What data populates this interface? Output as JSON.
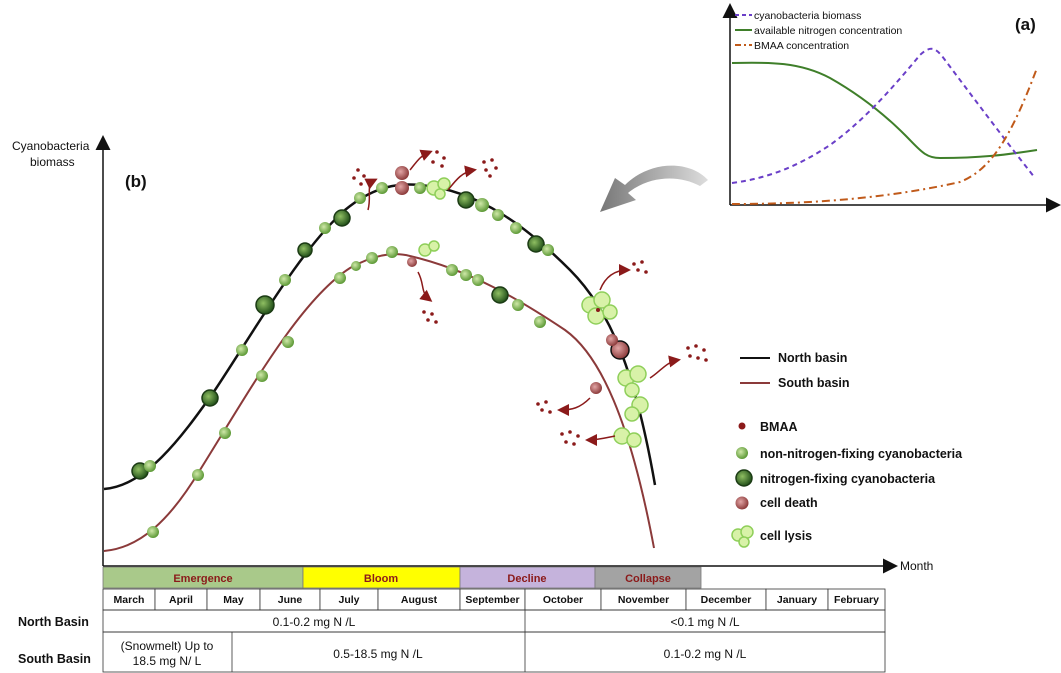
{
  "panel_a": {
    "label": "(a)",
    "legend": [
      {
        "text": "cyanobacteria biomass",
        "color": "#6a3fc8",
        "style": "dashed"
      },
      {
        "text": "available nitrogen concentration",
        "color": "#3f7f2a",
        "style": "solid"
      },
      {
        "text": "BMAA concentration",
        "color": "#c05a1a",
        "style": "dashdot"
      }
    ]
  },
  "panel_b": {
    "label": "(b)",
    "y_axis_label_line1": "Cyanobacteria",
    "y_axis_label_line2": "biomass",
    "x_axis_label": "Month",
    "lines_legend": [
      {
        "text": "North basin",
        "color": "#111111"
      },
      {
        "text": "South basin",
        "color": "#8b3a3a"
      }
    ],
    "symbols_legend": [
      {
        "text": "BMAA",
        "icon": "bmaa-dot-icon"
      },
      {
        "text": "non-nitrogen-fixing cyanobacteria",
        "icon": "non-nitrogen-fixing-cell-icon"
      },
      {
        "text": "nitrogen-fixing cyanobacteria",
        "icon": "nitrogen-fixing-cell-icon"
      },
      {
        "text": "cell death",
        "icon": "cell-death-icon"
      },
      {
        "text": "cell lysis",
        "icon": "cell-lysis-icon"
      }
    ]
  },
  "phases": [
    {
      "text": "Emergence",
      "color": "#a9c98a"
    },
    {
      "text": "Bloom",
      "color": "#ffff00"
    },
    {
      "text": "Decline",
      "color": "#c5b3dc"
    },
    {
      "text": "Collapse",
      "color": "#a3a3a3"
    }
  ],
  "months": [
    "March",
    "April",
    "May",
    "June",
    "July",
    "August",
    "September",
    "October",
    "November",
    "December",
    "January",
    "February"
  ],
  "rows": [
    {
      "label": "North Basin",
      "cells": [
        "0.1-0.2 mg N /L",
        "<0.1 mg N /L"
      ]
    },
    {
      "label": "South Basin",
      "cells_line1": "(Snowmelt)  Up to",
      "cells_line2": "18.5 mg N/ L",
      "cell_mid": "0.5-18.5 mg N /L",
      "cell_right": "0.1-0.2 mg N /L"
    }
  ]
}
